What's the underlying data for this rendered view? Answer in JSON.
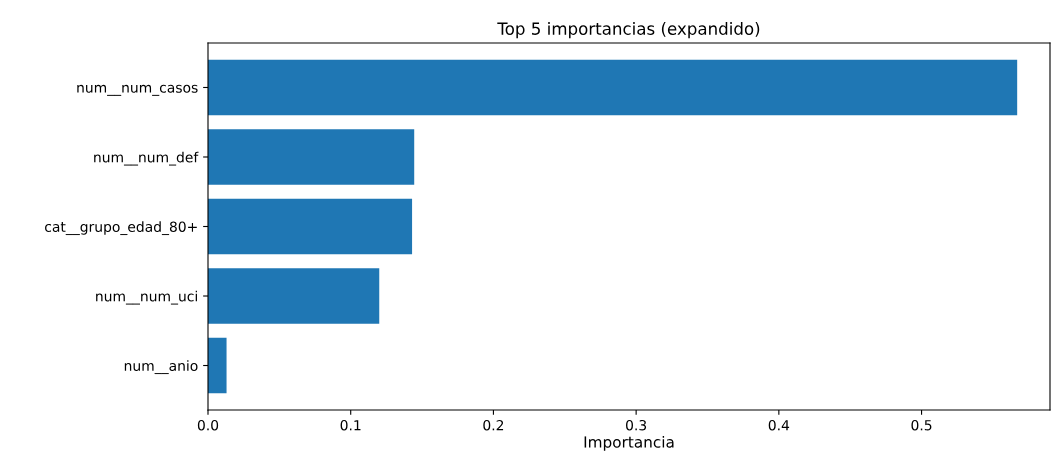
{
  "chart_data": {
    "type": "bar",
    "orientation": "horizontal",
    "title": "Top 5 importancias (expandido)",
    "xlabel": "Importancia",
    "categories": [
      "num__num_casos",
      "num__num_def",
      "cat__grupo_edad_80+",
      "num__num_uci",
      "num__anio"
    ],
    "values": [
      0.567,
      0.1445,
      0.143,
      0.12,
      0.013
    ],
    "color": "#1f77b4",
    "xlim": [
      0,
      0.59
    ],
    "xticks": [
      {
        "value": 0,
        "label": "0.0"
      },
      0.1,
      0.2,
      0.3,
      0.4,
      0.5
    ],
    "grid": false
  }
}
